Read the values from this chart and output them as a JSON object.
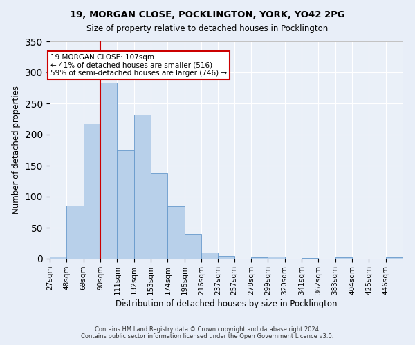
{
  "title_line1": "19, MORGAN CLOSE, POCKLINGTON, YORK, YO42 2PG",
  "title_line2": "Size of property relative to detached houses in Pocklington",
  "xlabel": "Distribution of detached houses by size in Pocklington",
  "ylabel": "Number of detached properties",
  "bar_values": [
    3,
    86,
    218,
    283,
    175,
    232,
    138,
    85,
    40,
    10,
    5,
    0,
    2,
    3,
    0,
    1,
    0,
    2,
    0,
    0,
    2
  ],
  "x_tick_labels": [
    "27sqm",
    "48sqm",
    "69sqm",
    "90sqm",
    "111sqm",
    "132sqm",
    "153sqm",
    "174sqm",
    "195sqm",
    "216sqm",
    "237sqm",
    "257sqm",
    "278sqm",
    "299sqm",
    "320sqm",
    "341sqm",
    "362sqm",
    "383sqm",
    "404sqm",
    "425sqm",
    "446sqm"
  ],
  "bar_color": "#b8d0ea",
  "bar_edge_color": "#6699cc",
  "background_color": "#eaf0f8",
  "grid_color": "#ffffff",
  "property_label": "19 MORGAN CLOSE: 107sqm",
  "annotation_line1": "← 41% of detached houses are smaller (516)",
  "annotation_line2": "59% of semi-detached houses are larger (746) →",
  "annotation_box_color": "#ffffff",
  "annotation_border_color": "#cc0000",
  "vline_color": "#cc0000",
  "vline_x_index": 3,
  "ylim": [
    0,
    350
  ],
  "yticks": [
    0,
    50,
    100,
    150,
    200,
    250,
    300,
    350
  ],
  "bin_edges": [
    27,
    48,
    69,
    90,
    111,
    132,
    153,
    174,
    195,
    216,
    237,
    257,
    278,
    299,
    320,
    341,
    362,
    383,
    404,
    425,
    446,
    467
  ],
  "footer1": "Contains HM Land Registry data © Crown copyright and database right 2024.",
  "footer2": "Contains public sector information licensed under the Open Government Licence v3.0.",
  "fig_bg": "#e8eef8"
}
